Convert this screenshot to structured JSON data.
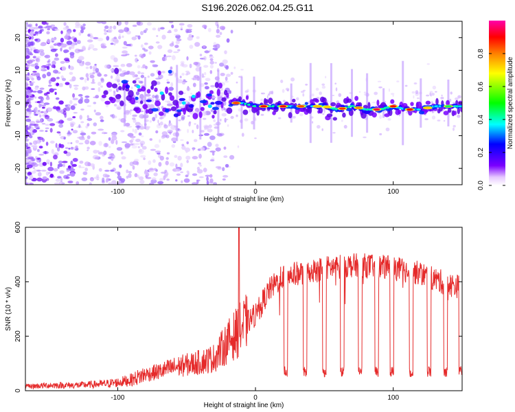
{
  "figure": {
    "title": "S196.2026.062.04.25.G11"
  },
  "chart_data": [
    {
      "type": "heatmap",
      "name": "spectrogram",
      "xlabel": "Height of straight line (km)",
      "ylabel": "Frequency (Hz)",
      "xlim": [
        -167,
        150
      ],
      "ylim": [
        -25,
        25
      ],
      "xticks": [
        -100,
        0,
        100
      ],
      "xtick_labels": [
        "-100",
        "0",
        "100"
      ],
      "yticks": [
        -20,
        -10,
        0,
        10,
        20
      ],
      "ytick_labels": [
        "-20",
        "-10",
        "0",
        "10",
        "20"
      ],
      "ridge": {
        "description_points_x": [
          -85,
          -80,
          -70,
          -60,
          -50,
          -40,
          -30,
          -20,
          -10,
          0,
          10,
          20,
          30,
          40,
          50,
          60,
          70,
          80,
          90,
          100,
          110,
          120,
          130,
          140,
          150
        ],
        "frequency_hz": [
          3,
          2,
          1,
          1,
          0,
          0,
          0,
          0,
          0,
          -1,
          -1,
          -1,
          -1,
          -1,
          -1,
          -2,
          -1,
          -2,
          -2,
          -1,
          -2,
          -2,
          -1,
          -1,
          -1
        ]
      },
      "colorbar": {
        "label": "Normalized spectral amplitude",
        "range": [
          0,
          1
        ],
        "ticks": [
          0.0,
          0.2,
          0.4,
          0.6,
          0.8
        ],
        "tick_labels": [
          "0.0",
          "0.2",
          "0.4",
          "0.6",
          "0.8"
        ],
        "colors": [
          "#ffffff",
          "#7b00ff",
          "#0000ff",
          "#00ffff",
          "#00ff00",
          "#ffff00",
          "#ff8000",
          "#ff0000",
          "#ff00aa"
        ]
      }
    },
    {
      "type": "line",
      "name": "snr",
      "xlabel": "Height of straight line (km)",
      "ylabel": "SNR (10 * v/v)",
      "xlim": [
        -167,
        150
      ],
      "ylim": [
        0,
        600
      ],
      "xticks": [
        -100,
        0,
        100
      ],
      "xtick_labels": [
        "-100",
        "0",
        "100"
      ],
      "yticks": [
        0,
        200,
        400,
        600
      ],
      "ytick_labels": [
        "0",
        "200",
        "400",
        "600"
      ],
      "color": "#e52a2a",
      "x": [
        -167,
        -150,
        -130,
        -110,
        -100,
        -90,
        -80,
        -70,
        -60,
        -50,
        -40,
        -30,
        -20,
        -10,
        0,
        10,
        20,
        30,
        40,
        50,
        60,
        70,
        80,
        90,
        100,
        110,
        120,
        130,
        140,
        150
      ],
      "y": [
        15,
        20,
        20,
        25,
        30,
        40,
        60,
        70,
        85,
        95,
        105,
        120,
        180,
        230,
        280,
        370,
        420,
        430,
        440,
        450,
        455,
        460,
        460,
        455,
        450,
        440,
        430,
        410,
        390,
        380
      ],
      "spike": {
        "x": -12,
        "y": 600
      },
      "dropouts_x": [
        22,
        36,
        50,
        63,
        76,
        88,
        99,
        113,
        126,
        138,
        149
      ],
      "dropout_level": 70
    }
  ]
}
